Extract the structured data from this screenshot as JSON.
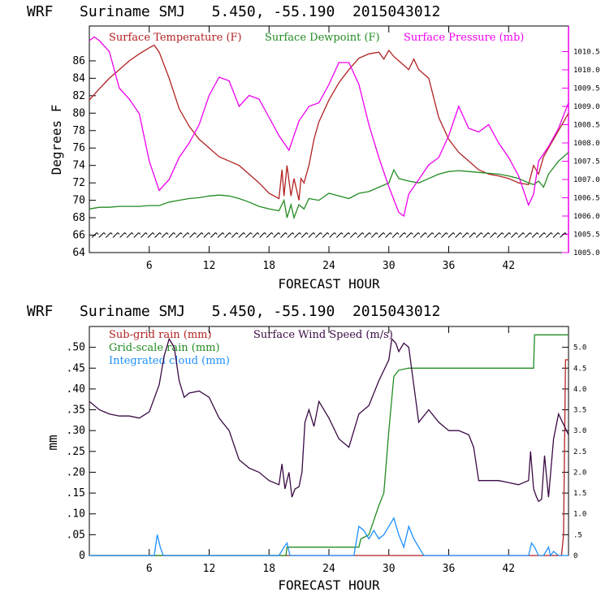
{
  "chart_data": [
    {
      "type": "line",
      "title": "WRF   Suriname SMJ   5.450, -55.190  2015043012",
      "xlabel": "FORECAST HOUR",
      "ylabel": "Degrees F",
      "xlim": [
        0,
        48
      ],
      "ylim": [
        64,
        90
      ],
      "y2lim": [
        1005.0,
        1011.2
      ],
      "x_ticks": [
        6,
        12,
        18,
        24,
        30,
        36,
        42
      ],
      "y_ticks": [
        64,
        66,
        68,
        70,
        72,
        74,
        76,
        78,
        80,
        82,
        84,
        86
      ],
      "y2_ticks": [
        "1005.0",
        "1005.5",
        "1006.0",
        "1006.5",
        "1007.0",
        "1007.5",
        "1008.0",
        "1008.5",
        "1009.0",
        "1009.5",
        "1010.0",
        "1010.5"
      ],
      "wind_barb_level": 66,
      "series": [
        {
          "name": "Surface Temperature (F)",
          "color": "#b22222",
          "axis": "left",
          "x": [
            0,
            1,
            2,
            3,
            4,
            5,
            6,
            6.5,
            7,
            8,
            9,
            10,
            11,
            12,
            13,
            14,
            15,
            16,
            17,
            18,
            19,
            19.3,
            19.5,
            19.8,
            20.2,
            20.5,
            21,
            21.2,
            21.5,
            22,
            22.5,
            23,
            24,
            25,
            26,
            27,
            28,
            29,
            29.5,
            30,
            30.5,
            31,
            32,
            32.5,
            33,
            34,
            35,
            36,
            37,
            38,
            39,
            40,
            41,
            42,
            43,
            44,
            44.5,
            45,
            45.5,
            46,
            47,
            48
          ],
          "values": [
            81.5,
            82.8,
            84,
            85,
            86,
            86.8,
            87.5,
            87.8,
            87,
            84,
            80.5,
            78.5,
            77,
            76,
            75,
            74.5,
            74,
            73,
            72,
            70.8,
            70.2,
            73.5,
            70.5,
            74,
            70.5,
            72.5,
            70,
            72.5,
            72,
            74,
            77,
            79,
            81.5,
            83.5,
            85,
            86.3,
            86.8,
            87,
            86.2,
            87.2,
            86.5,
            86,
            85,
            86.2,
            85,
            84,
            79.5,
            77,
            75.5,
            74.5,
            73.5,
            73,
            72.8,
            72.5,
            72,
            71.8,
            74,
            73,
            75,
            76,
            78,
            80
          ]
        },
        {
          "name": "Surface Dewpoint (F)",
          "color": "#228b22",
          "axis": "left",
          "x": [
            0,
            1,
            2,
            3,
            4,
            5,
            6,
            7,
            8,
            9,
            10,
            11,
            12,
            13,
            14,
            15,
            16,
            17,
            18,
            19,
            19.5,
            19.8,
            20.2,
            20.5,
            21,
            21.5,
            22,
            23,
            24,
            25,
            26,
            27,
            28,
            29,
            30,
            30.5,
            31,
            32,
            33,
            34,
            35,
            36,
            37,
            38,
            39,
            40,
            41,
            42,
            43,
            44,
            44.5,
            45,
            45.5,
            46,
            47,
            48
          ],
          "values": [
            69,
            69.2,
            69.2,
            69.3,
            69.3,
            69.3,
            69.4,
            69.4,
            69.8,
            70,
            70.2,
            70.3,
            70.5,
            70.6,
            70.5,
            70.2,
            69.8,
            69.3,
            69,
            68.8,
            70,
            68,
            69.5,
            68,
            69.5,
            69,
            70.2,
            70,
            70.8,
            70.5,
            70.2,
            70.8,
            71,
            71.5,
            72,
            73.5,
            72.5,
            72.2,
            72,
            72.5,
            73,
            73.3,
            73.4,
            73.3,
            73.2,
            73.1,
            73,
            72.8,
            72.5,
            72,
            71.8,
            72.2,
            71.5,
            73,
            74.5,
            75.5
          ]
        },
        {
          "name": "Surface Pressure (mb)",
          "color": "#ee00ee",
          "axis": "right",
          "x": [
            0,
            0.5,
            1,
            2,
            3,
            4,
            5,
            6,
            7,
            8,
            9,
            10,
            11,
            12,
            13,
            14,
            15,
            16,
            17,
            18,
            19,
            20,
            21,
            22,
            23,
            24,
            25,
            26,
            27,
            28,
            29,
            30,
            31,
            31.5,
            32,
            33,
            34,
            35,
            36,
            37,
            38,
            39,
            40,
            41,
            42,
            43,
            44,
            44.5,
            45,
            46,
            47,
            48
          ],
          "values": [
            1010.8,
            1010.9,
            1010.8,
            1010.5,
            1009.5,
            1009.2,
            1008.8,
            1007.5,
            1006.7,
            1007,
            1007.6,
            1008,
            1008.5,
            1009.3,
            1009.8,
            1009.7,
            1009,
            1009.3,
            1009.2,
            1008.7,
            1008.2,
            1007.8,
            1008.6,
            1009,
            1009.1,
            1009.6,
            1010.2,
            1010.2,
            1009.6,
            1008.5,
            1007.6,
            1006.8,
            1006.1,
            1006,
            1006.6,
            1007,
            1007.4,
            1007.6,
            1008.2,
            1009,
            1008.4,
            1008.3,
            1008.5,
            1008,
            1007.6,
            1007.1,
            1006.3,
            1006.6,
            1007.5,
            1007.9,
            1008.4,
            1009.1
          ]
        }
      ]
    },
    {
      "type": "line",
      "title": "WRF   Suriname SMJ   5.450, -55.190  2015043012",
      "xlabel": "FORECAST HOUR",
      "ylabel": "mm",
      "xlim": [
        0,
        48
      ],
      "ylim": [
        0,
        0.55
      ],
      "y2lim": [
        0,
        5.5
      ],
      "x_ticks": [
        6,
        12,
        18,
        24,
        30,
        36,
        42
      ],
      "y_ticks": [
        "0",
        ".05",
        ".10",
        ".15",
        ".20",
        ".25",
        ".30",
        ".35",
        ".40",
        ".45",
        ".50"
      ],
      "y2_ticks": [
        "0",
        ".5",
        "1.0",
        "1.5",
        "2.0",
        "2.5",
        "3.0",
        "3.5",
        "4.0",
        "4.5",
        "5.0"
      ],
      "series": [
        {
          "name": "Sub-grid rain (mm)",
          "color": "#b22222",
          "axis": "left",
          "x": [
            0,
            47.3,
            47.5,
            47.7,
            48
          ],
          "values": [
            0,
            0,
            0.05,
            0.47,
            0.47
          ]
        },
        {
          "name": "Grid-scale rain (mm)",
          "color": "#228b22",
          "axis": "left",
          "x": [
            0,
            19.7,
            19.8,
            27,
            27.2,
            28,
            29,
            29.5,
            30,
            30.5,
            31,
            32,
            33,
            44.5,
            44.6,
            48
          ],
          "values": [
            0,
            0,
            0.02,
            0.02,
            0.04,
            0.05,
            0.12,
            0.15,
            0.3,
            0.43,
            0.445,
            0.45,
            0.45,
            0.45,
            0.53,
            0.53
          ]
        },
        {
          "name": "Integrated cloud (mm)",
          "color": "#1e90ff",
          "axis": "left",
          "x": [
            0,
            6.5,
            6.8,
            7.1,
            7.4,
            19,
            19.5,
            19.8,
            20.1,
            26.5,
            27,
            27.5,
            28,
            28.5,
            29,
            29.5,
            30,
            30.5,
            31,
            31.5,
            32,
            32.5,
            33,
            33.5,
            44,
            44.3,
            44.6,
            45,
            45.5,
            46,
            46.2,
            46.5,
            47,
            48
          ],
          "values": [
            0,
            0,
            0.05,
            0.02,
            0,
            0,
            0.02,
            0.03,
            0,
            0,
            0.07,
            0.06,
            0.04,
            0.06,
            0.04,
            0.05,
            0.07,
            0.09,
            0.05,
            0.02,
            0.07,
            0.04,
            0.02,
            0,
            0,
            0.03,
            0.02,
            0,
            0,
            0.02,
            0,
            0.01,
            0,
            0
          ]
        },
        {
          "name": "Surface Wind Speed (m/s)",
          "color": "#3b0a45",
          "axis": "right",
          "x": [
            0,
            1,
            2,
            3,
            4,
            5,
            6,
            7,
            7.5,
            8,
            8.5,
            9,
            9.5,
            10,
            11,
            12,
            13,
            14,
            15,
            16,
            17,
            18,
            19,
            19.3,
            19.6,
            20,
            20.3,
            20.6,
            21,
            21.3,
            21.6,
            22,
            22.5,
            23,
            24,
            25,
            26,
            27,
            28,
            29,
            30,
            30.3,
            30.7,
            31,
            31.5,
            32,
            33,
            34,
            35,
            36,
            37,
            38,
            38.5,
            39,
            40,
            41,
            42,
            43,
            44,
            44.2,
            44.5,
            44.8,
            45,
            45.3,
            45.6,
            46,
            46.5,
            47,
            48
          ],
          "values": [
            3.7,
            3.5,
            3.4,
            3.35,
            3.35,
            3.3,
            3.45,
            4.1,
            4.8,
            5.2,
            5.0,
            4.2,
            3.8,
            3.9,
            3.95,
            3.8,
            3.3,
            3.0,
            2.3,
            2.1,
            2.0,
            1.8,
            1.7,
            2.2,
            1.6,
            2.0,
            1.4,
            1.6,
            1.65,
            2.0,
            3.2,
            3.5,
            3.1,
            3.7,
            3.3,
            2.8,
            2.6,
            3.4,
            3.6,
            4.2,
            4.7,
            5.2,
            5.1,
            4.9,
            5.1,
            5.0,
            3.2,
            3.5,
            3.2,
            3.0,
            3.0,
            2.9,
            2.6,
            1.8,
            1.8,
            1.8,
            1.75,
            1.7,
            1.8,
            2.5,
            1.6,
            1.4,
            1.3,
            1.35,
            2.4,
            1.4,
            2.8,
            3.4,
            2.9
          ]
        }
      ]
    }
  ],
  "chart1": {
    "title": "WRF   Suriname SMJ   5.450, -55.190  2015043012",
    "legend": [
      "Surface Temperature (F)",
      "Surface Dewpoint (F)",
      "Surface Pressure (mb)"
    ],
    "ylabel": "Degrees F",
    "xlabel": "FORECAST HOUR"
  },
  "chart2": {
    "title": "WRF   Suriname SMJ   5.450, -55.190  2015043012",
    "legend_subgrid": "Sub-grid rain (mm)",
    "legend_wind": "Surface Wind Speed (m/s)",
    "legend_grid": "Grid-scale rain (mm)",
    "legend_cloud": "Integrated cloud (mm)",
    "ylabel": "mm",
    "xlabel": "FORECAST HOUR"
  },
  "colors": {
    "temperature": "#b22222",
    "dewpoint": "#228b22",
    "pressure": "#ee00ee",
    "cloud": "#1e90ff",
    "wind": "#3b0a45"
  }
}
